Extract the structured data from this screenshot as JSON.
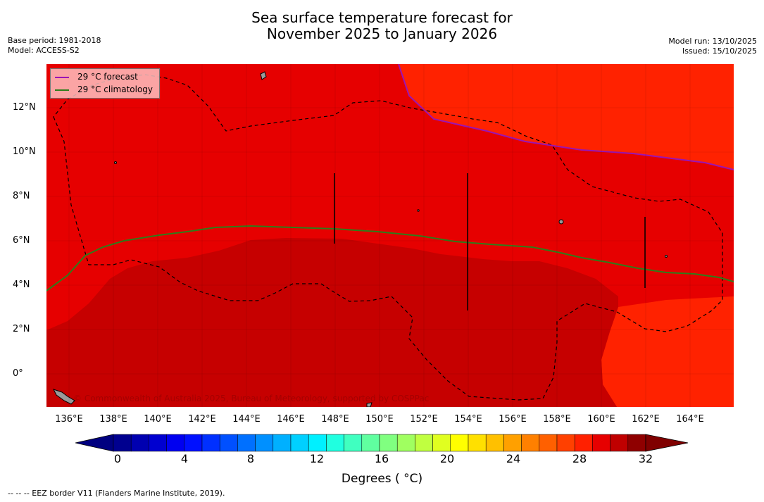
{
  "title": {
    "line1": "Sea surface temperature forecast for",
    "line2": "November 2025 to January 2026"
  },
  "meta_left": {
    "base_period": "Base period: 1981-2018",
    "model": "Model: ACCESS-S2"
  },
  "meta_right": {
    "model_run": "Model run: 13/10/2025",
    "issued": "Issued: 15/10/2025"
  },
  "legend": [
    {
      "label": "29 °C  forecast",
      "color": "#9b14b4"
    },
    {
      "label": "29 °C  climatology",
      "color": "#2e7d1a"
    }
  ],
  "axes": {
    "y_labels": [
      "12°N",
      "10°N",
      "8°N",
      "6°N",
      "4°N",
      "2°N",
      "0°"
    ],
    "x_labels": [
      "136°E",
      "138°E",
      "140°E",
      "142°E",
      "144°E",
      "146°E",
      "148°E",
      "150°E",
      "152°E",
      "154°E",
      "156°E",
      "158°E",
      "160°E",
      "162°E",
      "164°E"
    ],
    "lon_range": [
      135,
      166
    ],
    "lat_range": [
      -1.5,
      14
    ]
  },
  "map_layers": {
    "sst_regions_degC": [
      "28-29",
      "29-30",
      "30-31"
    ],
    "colors": {
      "warm_28": "#ff2200",
      "warm_29": "#e60000",
      "warm_30": "#c60000",
      "land": "#9a9a9a"
    }
  },
  "credit": "© Commonwealth of Australia 2025, Bureau of Meteorology, supported by COSPPac",
  "colorbar": {
    "ticks": [
      "0",
      "4",
      "8",
      "12",
      "16",
      "20",
      "24",
      "28",
      "32"
    ],
    "colors": [
      "#00008f",
      "#0000b0",
      "#0000d0",
      "#0000f0",
      "#0010ff",
      "#0030ff",
      "#0050ff",
      "#0070ff",
      "#0090ff",
      "#00b0ff",
      "#00d0ff",
      "#00f0ff",
      "#20ffe0",
      "#40ffc0",
      "#60ffa0",
      "#80ff80",
      "#a0ff60",
      "#c0ff40",
      "#e0ff20",
      "#ffff00",
      "#ffe000",
      "#ffc000",
      "#ffa000",
      "#ff8000",
      "#ff6000",
      "#ff4000",
      "#ff2000",
      "#e60000",
      "#c00000",
      "#8f0000"
    ],
    "label": "Degrees ( °C)"
  },
  "footer": "--  --  -- EEZ border V11 (Flanders Marine Institute, 2019)."
}
